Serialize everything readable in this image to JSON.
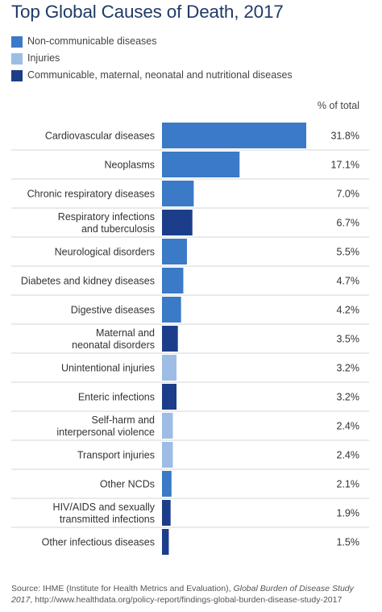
{
  "title": "Top Global Causes of Death, 2017",
  "colors": {
    "ncd": "#3a7ac6",
    "injury": "#9dbde5",
    "communicable": "#1c3e8a",
    "title": "#1f3b66"
  },
  "legend": [
    {
      "label": "Non-communicable diseases",
      "color": "#3a7ac6"
    },
    {
      "label": "Injuries",
      "color": "#9dbde5"
    },
    {
      "label": "Communicable, maternal, neonatal and nutritional diseases",
      "color": "#1c3e8a"
    }
  ],
  "chart_data": {
    "type": "bar",
    "orientation": "horizontal",
    "value_header": "% of total",
    "xlim": [
      0,
      31.8
    ],
    "categories": [
      [
        "Cardiovascular diseases"
      ],
      [
        "Neoplasms"
      ],
      [
        "Chronic respiratory diseases"
      ],
      [
        "Respiratory infections",
        "and tuberculosis"
      ],
      [
        "Neurological disorders"
      ],
      [
        "Diabetes and kidney diseases"
      ],
      [
        "Digestive diseases"
      ],
      [
        "Maternal and",
        "neonatal disorders"
      ],
      [
        "Unintentional injuries"
      ],
      [
        "Enteric infections"
      ],
      [
        "Self-harm and",
        "interpersonal violence"
      ],
      [
        "Transport injuries"
      ],
      [
        "Other NCDs"
      ],
      [
        "HIV/AIDS and sexually",
        "transmitted infections"
      ],
      [
        "Other infectious diseases"
      ]
    ],
    "values": [
      31.8,
      17.1,
      7.0,
      6.7,
      5.5,
      4.7,
      4.2,
      3.5,
      3.2,
      3.2,
      2.4,
      2.4,
      2.1,
      1.9,
      1.5
    ],
    "value_labels": [
      "31.8%",
      "17.1%",
      "7.0%",
      "6.7%",
      "5.5%",
      "4.7%",
      "4.2%",
      "3.5%",
      "3.2%",
      "3.2%",
      "2.4%",
      "2.4%",
      "2.1%",
      "1.9%",
      "1.5%"
    ],
    "groups": [
      "ncd",
      "ncd",
      "ncd",
      "communicable",
      "ncd",
      "ncd",
      "ncd",
      "communicable",
      "injury",
      "communicable",
      "injury",
      "injury",
      "ncd",
      "communicable",
      "communicable"
    ]
  },
  "source": {
    "prefix": "Source: IHME (Institute for Health Metrics and Evaluation), ",
    "study": "Global Burden of Disease Study 2017",
    "suffix": ", http://www.healthdata.org/policy-report/findings-global-burden-disease-study-2017"
  }
}
